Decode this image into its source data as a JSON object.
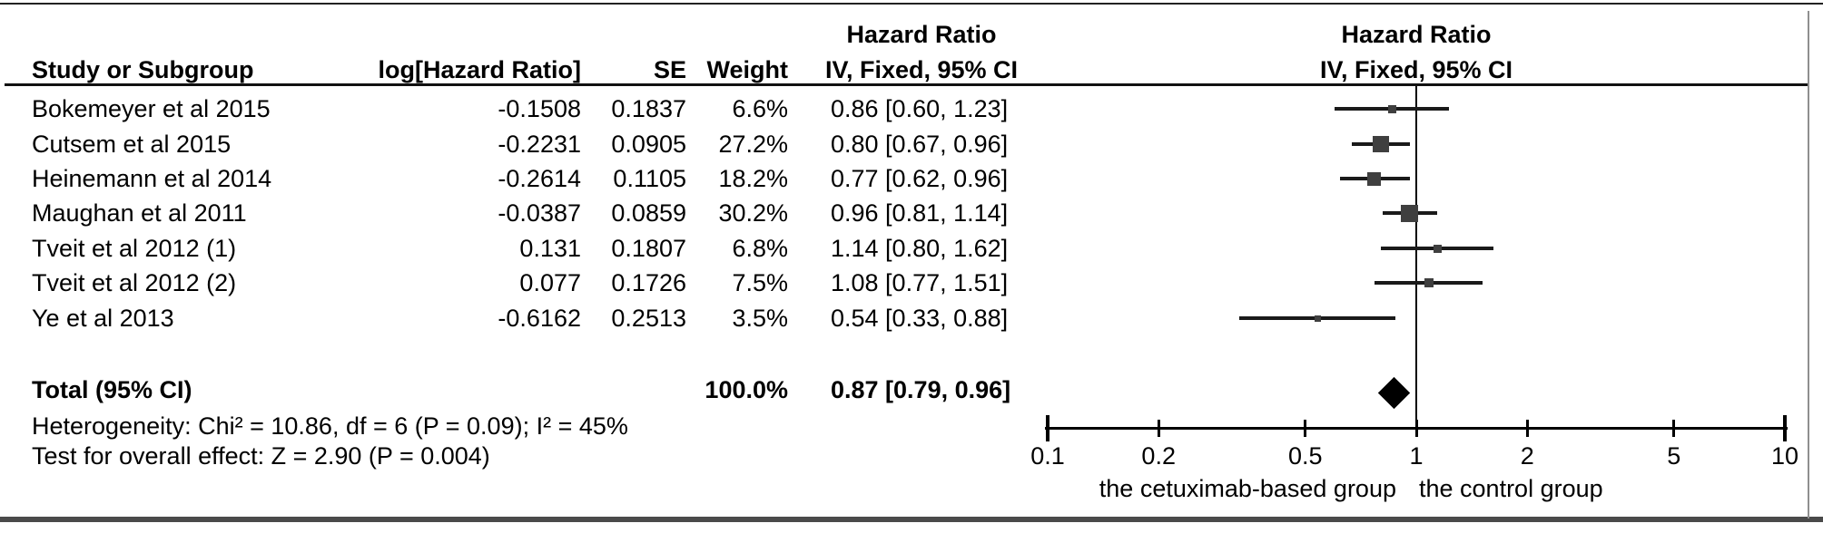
{
  "table": {
    "headers": {
      "study": "Study or Subgroup",
      "log_hr": "log[Hazard Ratio]",
      "se": "SE",
      "weight": "Weight",
      "hr_line1": "Hazard Ratio",
      "hr_line2": "IV, Fixed, 95% CI",
      "plot_line1": "Hazard Ratio",
      "plot_line2": "IV, Fixed, 95% CI"
    },
    "rows": [
      {
        "study": "Bokemeyer et al 2015",
        "log_hr": "-0.1508",
        "se": "0.1837",
        "weight": "6.6%",
        "ci_text": "0.86 [0.60, 1.23]"
      },
      {
        "study": "Cutsem et al 2015",
        "log_hr": "-0.2231",
        "se": "0.0905",
        "weight": "27.2%",
        "ci_text": "0.80 [0.67, 0.96]"
      },
      {
        "study": "Heinemann et al 2014",
        "log_hr": "-0.2614",
        "se": "0.1105",
        "weight": "18.2%",
        "ci_text": "0.77 [0.62, 0.96]"
      },
      {
        "study": "Maughan et al 2011",
        "log_hr": "-0.0387",
        "se": "0.0859",
        "weight": "30.2%",
        "ci_text": "0.96 [0.81, 1.14]"
      },
      {
        "study": "Tveit et al 2012 (1)",
        "log_hr": "0.131",
        "se": "0.1807",
        "weight": "6.8%",
        "ci_text": "1.14 [0.80, 1.62]"
      },
      {
        "study": "Tveit et al 2012 (2)",
        "log_hr": "0.077",
        "se": "0.1726",
        "weight": "7.5%",
        "ci_text": "1.08 [0.77, 1.51]"
      },
      {
        "study": "Ye et al 2013",
        "log_hr": "-0.6162",
        "se": "0.2513",
        "weight": "3.5%",
        "ci_text": "0.54 [0.33, 0.88]"
      }
    ],
    "total": {
      "label": "Total (95% CI)",
      "weight": "100.0%",
      "ci_text": "0.87 [0.79, 0.96]"
    },
    "heterogeneity": "Heterogeneity: Chi² = 10.86, df = 6 (P = 0.09); I² = 45%",
    "overall_effect": "Test for overall effect: Z = 2.90 (P = 0.004)"
  },
  "axis": {
    "tick_labels": [
      "0.1",
      "0.2",
      "0.5",
      "1",
      "2",
      "5",
      "10"
    ],
    "left_label": "the cetuximab-based group",
    "right_label": "the control group"
  },
  "chart_data": {
    "type": "scatter",
    "subtype": "forest-plot",
    "title": "Hazard Ratio",
    "model": "IV, Fixed, 95% CI",
    "xscale": "log",
    "xlim": [
      0.1,
      10
    ],
    "xticks": [
      0.1,
      0.2,
      0.5,
      1,
      2,
      5,
      10
    ],
    "series": [
      {
        "name": "Bokemeyer et al 2015",
        "log_hr": -0.1508,
        "se": 0.1837,
        "weight_pct": 6.6,
        "hr": 0.86,
        "ci_low": 0.6,
        "ci_high": 1.23
      },
      {
        "name": "Cutsem et al 2015",
        "log_hr": -0.2231,
        "se": 0.0905,
        "weight_pct": 27.2,
        "hr": 0.8,
        "ci_low": 0.67,
        "ci_high": 0.96
      },
      {
        "name": "Heinemann et al 2014",
        "log_hr": -0.2614,
        "se": 0.1105,
        "weight_pct": 18.2,
        "hr": 0.77,
        "ci_low": 0.62,
        "ci_high": 0.96
      },
      {
        "name": "Maughan et al 2011",
        "log_hr": -0.0387,
        "se": 0.0859,
        "weight_pct": 30.2,
        "hr": 0.96,
        "ci_low": 0.81,
        "ci_high": 1.14
      },
      {
        "name": "Tveit et al 2012 (1)",
        "log_hr": 0.131,
        "se": 0.1807,
        "weight_pct": 6.8,
        "hr": 1.14,
        "ci_low": 0.8,
        "ci_high": 1.62
      },
      {
        "name": "Tveit et al 2012 (2)",
        "log_hr": 0.077,
        "se": 0.1726,
        "weight_pct": 7.5,
        "hr": 1.08,
        "ci_low": 0.77,
        "ci_high": 1.51
      },
      {
        "name": "Ye et al 2013",
        "log_hr": -0.6162,
        "se": 0.2513,
        "weight_pct": 3.5,
        "hr": 0.54,
        "ci_low": 0.33,
        "ci_high": 0.88
      }
    ],
    "total": {
      "name": "Total (95% CI)",
      "weight_pct": 100.0,
      "hr": 0.87,
      "ci_low": 0.79,
      "ci_high": 0.96
    },
    "heterogeneity": {
      "chi2": 10.86,
      "df": 6,
      "p": 0.09,
      "i2_pct": 45
    },
    "overall_effect": {
      "z": 2.9,
      "p": 0.004
    },
    "favours_left": "the cetuximab-based group",
    "favours_right": "the control group",
    "colors": {
      "square": "#3f3f3f",
      "ci_line": "#1a1a1a",
      "diamond": "#000000",
      "axis": "#000000"
    }
  }
}
